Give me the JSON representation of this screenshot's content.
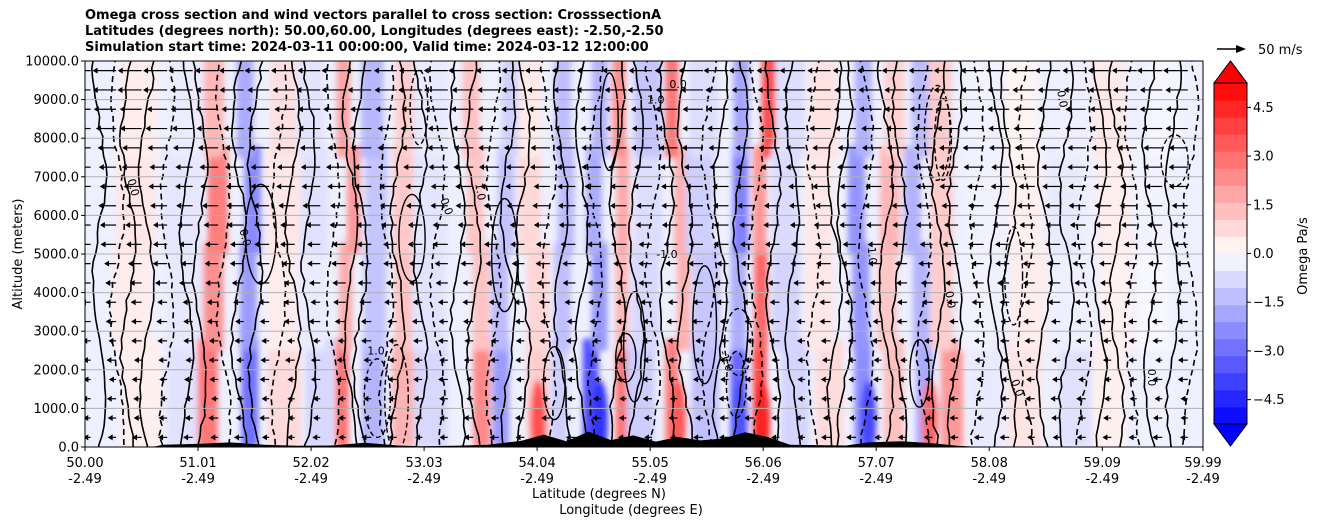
{
  "chart_data": {
    "type": "heatmap",
    "title_lines": [
      "Omega cross section and wind vectors parallel to cross section: CrosssectionA",
      "Latitudes (degrees north): 50.00,60.00, Longitudes (degrees east): -2.50,-2.50",
      "Simulation start time: 2024-03-11 00:00:00, Valid time: 2024-03-12 12:00:00"
    ],
    "ylabel": "Altitude (meters)",
    "xlabel_lines": [
      "Latitude (degrees N)",
      "Longitude (degrees E)"
    ],
    "ylim": [
      0,
      10000
    ],
    "yticks": [
      0,
      1000,
      2000,
      3000,
      4000,
      5000,
      6000,
      7000,
      8000,
      9000,
      10000
    ],
    "ytick_labels": [
      "0.0",
      "1000.0",
      "2000.0",
      "3000.0",
      "4000.0",
      "5000.0",
      "6000.0",
      "7000.0",
      "8000.0",
      "9000.0",
      "10000.0"
    ],
    "xlim": [
      50.0,
      59.99
    ],
    "xticks_lat": [
      "50.00",
      "51.01",
      "52.02",
      "53.03",
      "54.04",
      "55.05",
      "56.06",
      "57.07",
      "58.08",
      "59.09",
      "59.99"
    ],
    "xticks_lon": [
      "-2.49",
      "-2.49",
      "-2.49",
      "-2.49",
      "-2.49",
      "-2.49",
      "-2.49",
      "-2.49",
      "-2.49",
      "-2.49",
      "-2.49"
    ],
    "colorbar": {
      "label": "Omega Pa/s",
      "range": [
        -5.25,
        5.25
      ],
      "ticks": [
        4.5,
        3.0,
        1.5,
        0.0,
        -1.5,
        -3.0,
        -4.5
      ],
      "tick_labels": [
        "4.5",
        "3.0",
        "1.5",
        "0.0",
        "−1.5",
        "−3.0",
        "−4.5"
      ],
      "levels": 20
    },
    "quiver_key": {
      "label": "50 m/s"
    },
    "contour_labels": [
      {
        "text": "1.0",
        "x": 53.5,
        "y": 6600,
        "r": 80
      },
      {
        "text": "0.0",
        "x": 55.3,
        "y": 9300,
        "r": 0
      },
      {
        "text": "1.0",
        "x": 55.1,
        "y": 8900,
        "r": 0
      },
      {
        "text": "0.0",
        "x": 58.7,
        "y": 9000,
        "r": 80
      },
      {
        "text": "-1.0",
        "x": 55.2,
        "y": 4900,
        "r": 0
      },
      {
        "text": "-1.0",
        "x": 57.0,
        "y": 5000,
        "r": 85
      },
      {
        "text": "1.0",
        "x": 52.6,
        "y": 2400,
        "r": 0
      },
      {
        "text": "0.0",
        "x": 53.2,
        "y": 6200,
        "r": 70
      },
      {
        "text": "0.0",
        "x": 57.7,
        "y": 3800,
        "r": 80
      },
      {
        "text": "0.0",
        "x": 58.3,
        "y": 1500,
        "r": 70
      },
      {
        "text": "0.0",
        "x": 59.5,
        "y": 1800,
        "r": 90
      },
      {
        "text": "0.0",
        "x": 51.4,
        "y": 5400,
        "r": 75
      },
      {
        "text": "-1.0",
        "x": 55.7,
        "y": 2200,
        "r": 70
      },
      {
        "text": "0.0",
        "x": 50.4,
        "y": 6700,
        "r": 75
      }
    ]
  }
}
